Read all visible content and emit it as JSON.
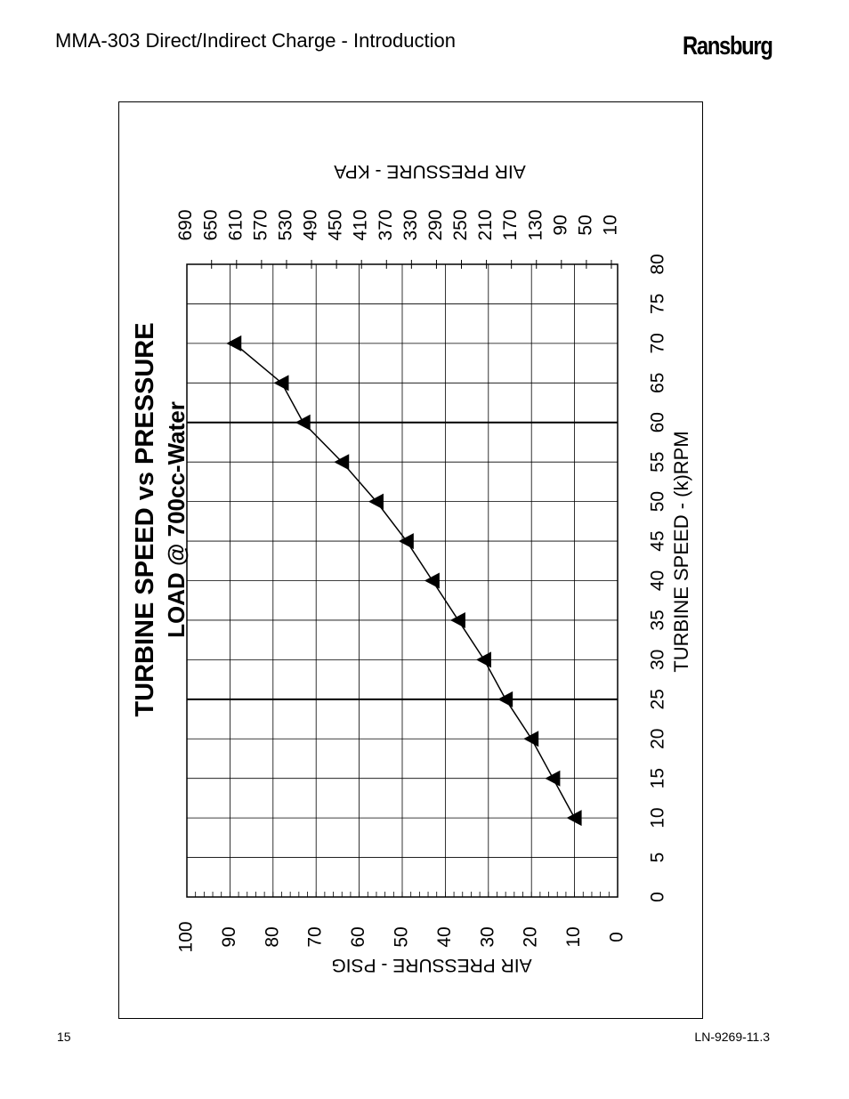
{
  "header": {
    "title": "MMA-303 Direct/Indirect Charge - Introduction",
    "brand": "Ransburg"
  },
  "footer": {
    "page_number": "15",
    "doc_code": "LN-9269-11.3"
  },
  "chart_data": {
    "type": "line",
    "orientation": "rotated-90",
    "title": "TURBINE SPEED vs PRESSURE",
    "subtitle": "LOAD @ 700cc-Water",
    "xlabel": "TURBINE SPEED - (k)RPM",
    "ylabel": "AIR PRESSURE - PSIG",
    "y2label": "AIR PRESSURE - KPA",
    "xlim": [
      0,
      80
    ],
    "ylim": [
      0,
      100
    ],
    "x_ticks": [
      "0",
      "5",
      "10",
      "15",
      "20",
      "25",
      "30",
      "35",
      "40",
      "45",
      "50",
      "55",
      "60",
      "65",
      "70",
      "75",
      "80"
    ],
    "y_ticks": [
      "0",
      "10",
      "20",
      "30",
      "40",
      "50",
      "60",
      "70",
      "80",
      "90",
      "100"
    ],
    "y2_ticks": [
      "10",
      "50",
      "90",
      "130",
      "170",
      "210",
      "250",
      "290",
      "330",
      "370",
      "410",
      "450",
      "490",
      "530",
      "570",
      "610",
      "650",
      "690"
    ],
    "grid": true,
    "series": [
      {
        "marker": "triangle",
        "x": [
          10,
          15,
          20,
          25,
          30,
          35,
          40,
          45,
          50,
          55,
          60,
          65,
          70
        ],
        "y": [
          10,
          15,
          20,
          26,
          31,
          37,
          43,
          49,
          56,
          64,
          73,
          78,
          89
        ]
      }
    ]
  }
}
